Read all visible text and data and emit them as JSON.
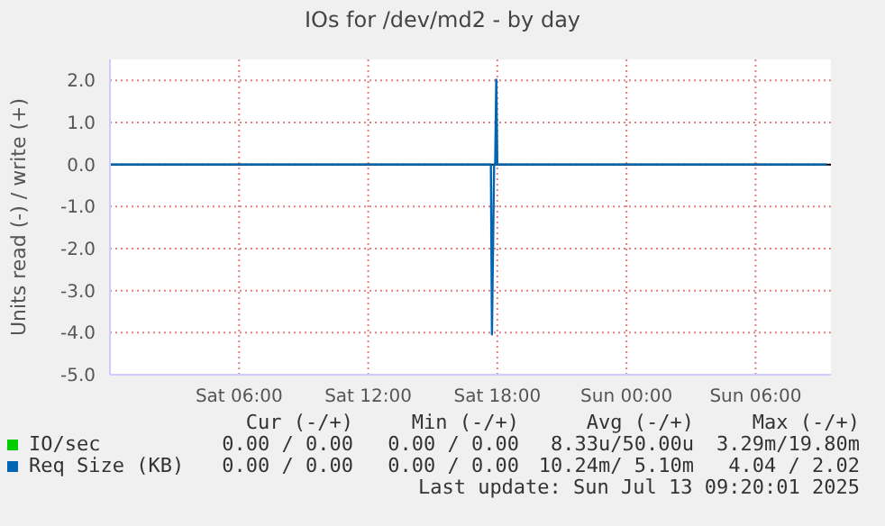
{
  "chart_data": {
    "type": "line",
    "title": "IOs for /dev/md2 - by day",
    "ylabel": "Units read (-) / write (+)",
    "xlim": [
      "2025-07-12T00:00",
      "2025-07-13T09:30"
    ],
    "xticks": [
      {
        "value": "2025-07-12T06:00",
        "label": "Sat 06:00"
      },
      {
        "value": "2025-07-12T12:00",
        "label": "Sat 12:00"
      },
      {
        "value": "2025-07-12T18:00",
        "label": "Sat 18:00"
      },
      {
        "value": "2025-07-13T00:00",
        "label": "Sun 00:00"
      },
      {
        "value": "2025-07-13T06:00",
        "label": "Sun 06:00"
      }
    ],
    "ylim": [
      -5,
      2.5
    ],
    "yticks": [
      {
        "value": -5,
        "label": "-5.0"
      },
      {
        "value": -4,
        "label": "-4.0"
      },
      {
        "value": -3,
        "label": "-3.0"
      },
      {
        "value": -2,
        "label": "-2.0"
      },
      {
        "value": -1,
        "label": "-1.0"
      },
      {
        "value": 0,
        "label": "0.0"
      },
      {
        "value": 1,
        "label": "1.0"
      },
      {
        "value": 2,
        "label": "2.0"
      }
    ],
    "series": [
      {
        "name": "IO/sec",
        "color": "#00cc00"
      },
      {
        "name": "Req Size (KB)",
        "color": "#0066b3",
        "x": [
          "2025-07-12T00:00",
          "2025-07-12T17:42",
          "2025-07-12T17:45",
          "2025-07-12T17:51",
          "2025-07-12T17:54",
          "2025-07-12T17:57",
          "2025-07-12T18:00",
          "2025-07-13T09:18"
        ],
        "values": [
          0,
          0,
          -4.04,
          0,
          0,
          2.02,
          0,
          0
        ]
      }
    ],
    "ref_lines": [
      {
        "axis": "y",
        "value": 0,
        "color": "#000000"
      }
    ],
    "grid": true,
    "legend": "bottom",
    "marker": "none",
    "line_style": "solid",
    "annotations": [
      "Cur (-/+)",
      "Min (-/+)",
      "Avg (-/+)",
      "Max (-/+)",
      "0.00 / 0.00",
      "0.00 / 0.00",
      "8.33u/50.00u",
      "3.29m/19.80m",
      "0.00 / 0.00",
      "0.00 / 0.00",
      "10.24m/ 5.10m",
      "4.04 / 2.02",
      "Last update: Sun Jul 13 09:20:01 2025"
    ]
  }
}
